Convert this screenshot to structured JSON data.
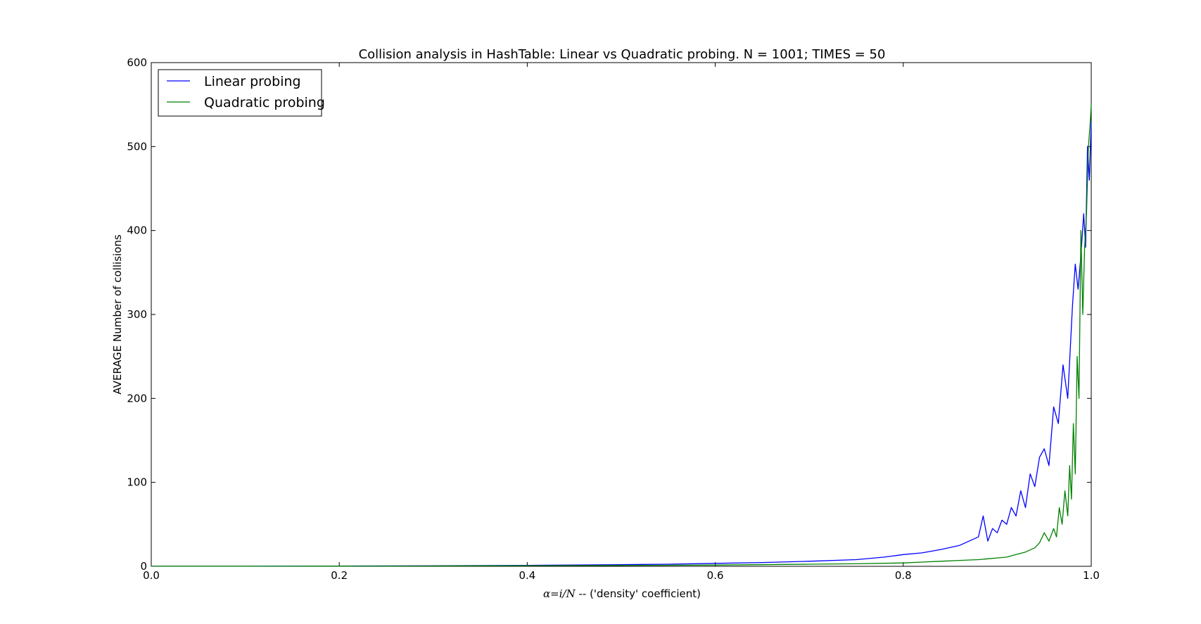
{
  "chart_data": {
    "type": "line",
    "title": "Collision analysis in HashTable: Linear vs Quadratic probing. N = 1001; TIMES = 50",
    "xlabel_math": "α=i/N",
    "xlabel_rest": " -- ('density' coefficient)",
    "ylabel": "AVERAGE Number of collisions",
    "xlim": [
      0.0,
      1.0
    ],
    "ylim": [
      0,
      600
    ],
    "xticks": [
      "0.0",
      "0.2",
      "0.4",
      "0.6",
      "0.8",
      "1.0"
    ],
    "yticks": [
      "0",
      "100",
      "200",
      "300",
      "400",
      "500",
      "600"
    ],
    "grid": false,
    "legend_position": "top-left",
    "series": [
      {
        "name": "Linear probing",
        "color": "#0000ff",
        "x": [
          0.0,
          0.1,
          0.2,
          0.3,
          0.4,
          0.5,
          0.55,
          0.6,
          0.65,
          0.7,
          0.75,
          0.78,
          0.8,
          0.82,
          0.84,
          0.86,
          0.87,
          0.88,
          0.885,
          0.89,
          0.895,
          0.9,
          0.905,
          0.91,
          0.915,
          0.92,
          0.925,
          0.93,
          0.935,
          0.94,
          0.945,
          0.95,
          0.955,
          0.96,
          0.965,
          0.97,
          0.975,
          0.98,
          0.983,
          0.986,
          0.989,
          0.992,
          0.994,
          0.996,
          0.998,
          1.0
        ],
        "y": [
          0.1,
          0.1,
          0.3,
          0.6,
          1.2,
          2.0,
          2.5,
          3.5,
          4.5,
          6,
          8,
          11,
          14,
          16,
          20,
          25,
          30,
          35,
          60,
          30,
          45,
          40,
          55,
          50,
          70,
          60,
          90,
          70,
          110,
          95,
          130,
          140,
          120,
          190,
          170,
          240,
          200,
          310,
          360,
          330,
          370,
          420,
          380,
          500,
          460,
          530
        ]
      },
      {
        "name": "Quadratic probing",
        "color": "#008000",
        "x": [
          0.0,
          0.1,
          0.2,
          0.3,
          0.4,
          0.5,
          0.6,
          0.7,
          0.75,
          0.8,
          0.82,
          0.84,
          0.86,
          0.88,
          0.89,
          0.9,
          0.91,
          0.92,
          0.93,
          0.94,
          0.945,
          0.95,
          0.955,
          0.96,
          0.963,
          0.966,
          0.969,
          0.972,
          0.975,
          0.977,
          0.979,
          0.981,
          0.983,
          0.985,
          0.987,
          0.989,
          0.991,
          0.993,
          0.995,
          0.997,
          0.999,
          1.0
        ],
        "y": [
          0.1,
          0.1,
          0.2,
          0.4,
          0.7,
          1.0,
          1.5,
          2.5,
          3,
          4,
          5,
          6,
          7,
          8,
          9,
          10,
          11,
          14,
          17,
          22,
          28,
          40,
          30,
          45,
          35,
          70,
          50,
          90,
          60,
          120,
          80,
          170,
          110,
          250,
          200,
          400,
          300,
          380,
          420,
          500,
          530,
          550
        ]
      }
    ]
  }
}
